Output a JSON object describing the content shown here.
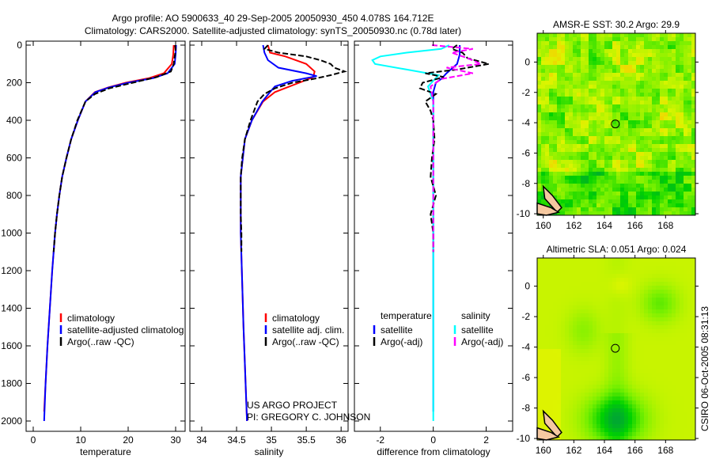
{
  "title_line1": "Argo profile: AO 5900633_40 29-Sep-2005 20050930_450 4.078S 164.712E",
  "title_line2": "Climatology: CARS2000. Satellite-adjusted climatology: synTS_20050930.nc (0.78d later)",
  "credit_project": "US ARGO PROJECT",
  "credit_pi": "PI: GREGORY C. JOHNSON",
  "timestamp": "CSIRO 06-Oct-2005 08:31:13",
  "colors": {
    "climatology": "#ff0000",
    "satellite": "#0000ff",
    "argo": "#000000",
    "sat_salinity": "#00ffff",
    "argo_salinity": "#ff00ff"
  },
  "chart_data": [
    {
      "type": "line",
      "xlabel": "temperature",
      "xlim": [
        -1.5,
        32
      ],
      "ylim": [
        2000,
        0
      ],
      "xticks": [
        0,
        10,
        20,
        30
      ],
      "yticks": [
        0,
        200,
        400,
        600,
        800,
        1000,
        1200,
        1400,
        1600,
        1800,
        2000
      ],
      "legend": [
        "climatology",
        "satellite-adjusted climatolog",
        "Argo(..raw -QC)"
      ],
      "series": [
        {
          "name": "climatology",
          "color": "#ff0000",
          "dash": false,
          "depth": [
            0,
            50,
            100,
            150,
            175,
            200,
            225,
            250,
            300,
            400,
            500,
            600,
            700,
            800,
            900,
            1000,
            1200,
            1400,
            1600,
            1800,
            1950
          ],
          "values": [
            29.6,
            29.5,
            29.2,
            27.5,
            24.5,
            19.5,
            15.8,
            13,
            11,
            9.4,
            8,
            7,
            6.1,
            5.5,
            5,
            4.6,
            4,
            3.5,
            3,
            2.6,
            2.3
          ]
        },
        {
          "name": "satellite-adjusted climatology",
          "color": "#0000ff",
          "dash": false,
          "depth": [
            0,
            50,
            100,
            150,
            175,
            200,
            225,
            250,
            300,
            400,
            500,
            600,
            700,
            800,
            900,
            1000,
            1200,
            1400,
            1600,
            1800,
            2000
          ],
          "values": [
            30.1,
            30,
            29.8,
            28.3,
            25.3,
            20,
            16,
            13.1,
            11,
            9.4,
            8,
            7,
            6.1,
            5.5,
            5,
            4.6,
            4,
            3.5,
            3,
            2.6,
            2.3
          ]
        },
        {
          "name": "Argo(..raw -QC)",
          "color": "#000000",
          "dash": true,
          "depth": [
            0,
            30,
            60,
            100,
            140,
            170,
            200,
            230,
            260,
            300,
            400,
            500,
            600,
            700,
            800,
            900,
            1000,
            1100
          ],
          "values": [
            29.9,
            30,
            29.8,
            29.6,
            29,
            26,
            21,
            16,
            13,
            11,
            9.3,
            8,
            7,
            6.1,
            5.5,
            5,
            4.6,
            4.3
          ]
        }
      ]
    },
    {
      "type": "line",
      "xlabel": "salinity",
      "xlim": [
        33.83,
        36.1
      ],
      "ylim": [
        2000,
        0
      ],
      "xticks": [
        34,
        34.5,
        35,
        35.5,
        36
      ],
      "legend": [
        "climatology",
        "satellite adj. clim.",
        "Argo(..raw -QC)"
      ],
      "series": [
        {
          "name": "climatology",
          "color": "#ff0000",
          "dash": false,
          "depth": [
            0,
            40,
            60,
            100,
            140,
            170,
            200,
            250,
            300,
            400,
            500,
            700,
            1000,
            1500,
            2000
          ],
          "values": [
            34.95,
            34.98,
            35.2,
            35.5,
            35.62,
            35.6,
            35.4,
            35.05,
            34.88,
            34.72,
            34.62,
            34.56,
            34.56,
            34.6,
            34.65
          ]
        },
        {
          "name": "satellite adj. clim.",
          "color": "#0000ff",
          "dash": false,
          "depth": [
            0,
            40,
            80,
            120,
            150,
            165,
            190,
            220,
            250,
            300,
            400,
            500,
            700,
            1000,
            1500,
            2000
          ],
          "values": [
            34.88,
            34.9,
            34.95,
            35.1,
            35.5,
            35.65,
            35.3,
            35.05,
            34.98,
            34.87,
            34.72,
            34.62,
            34.56,
            34.56,
            34.6,
            34.65
          ]
        },
        {
          "name": "Argo(..raw -QC)",
          "color": "#000000",
          "dash": true,
          "depth": [
            0,
            20,
            40,
            60,
            80,
            100,
            120,
            140,
            160,
            180,
            200,
            230,
            260,
            300,
            350,
            400,
            500,
            600,
            700,
            800,
            900,
            1000,
            1100
          ],
          "values": [
            34.95,
            34.9,
            35.1,
            35.5,
            35.7,
            35.85,
            35.9,
            36.05,
            35.85,
            35.6,
            35.3,
            35.05,
            34.9,
            34.8,
            34.75,
            34.7,
            34.62,
            34.58,
            34.56,
            34.56,
            34.56,
            34.57,
            34.57
          ]
        }
      ]
    },
    {
      "type": "line",
      "xlabel": "difference from climatology",
      "xlim": [
        -2.98,
        3.0
      ],
      "ylim": [
        2000,
        0
      ],
      "xticks": [
        -2,
        0,
        2
      ],
      "legend_headers": [
        "temperature",
        "salinity"
      ],
      "legend": [
        "satellite",
        "Argo(-adj)",
        "satellite",
        "Argo(-adj)"
      ],
      "series": [
        {
          "name": "temperature satellite",
          "color": "#0000ff",
          "dash": false,
          "depth": [
            0,
            50,
            100,
            150,
            180,
            200,
            250,
            300,
            400,
            600,
            1000,
            1500,
            1950
          ],
          "values": [
            1.0,
            1.0,
            0.9,
            0.5,
            0.3,
            0.1,
            0,
            0,
            0,
            0,
            0,
            0,
            0
          ]
        },
        {
          "name": "salinity satellite",
          "color": "#00ffff",
          "dash": false,
          "depth": [
            0,
            20,
            40,
            60,
            80,
            100,
            130,
            160,
            190,
            220,
            300,
            600,
            1000,
            1500,
            2000
          ],
          "values": [
            0.6,
            0.3,
            -1.0,
            -2.0,
            -2.3,
            -2.2,
            -1.0,
            0.2,
            0,
            -0.2,
            0,
            0,
            0,
            0,
            0
          ]
        },
        {
          "name": "temperature Argo(-adj)",
          "color": "#000000",
          "dash": true,
          "depth": [
            0,
            20,
            40,
            70,
            100,
            130,
            150,
            170,
            200,
            230,
            260,
            300,
            350,
            400,
            500,
            600,
            700,
            800,
            900,
            1000,
            1100
          ],
          "values": [
            0.9,
            0.7,
            1.1,
            1.3,
            2.1,
            0.9,
            -0.3,
            0.4,
            -0.4,
            -0.5,
            0.1,
            -0.3,
            -0.1,
            0,
            0.05,
            -0.05,
            -0.1,
            0.1,
            -0.1,
            0,
            0
          ]
        },
        {
          "name": "salinity Argo(-adj)",
          "color": "#ff00ff",
          "dash": true,
          "depth": [
            0,
            20,
            40,
            70,
            100,
            120,
            150,
            180,
            220,
            300,
            400,
            600,
            800,
            1000,
            1100
          ],
          "values": [
            -0.05,
            1.5,
            0.7,
            1.3,
            1.8,
            0.5,
            1.5,
            0.3,
            -0.1,
            0,
            0,
            0,
            0,
            0,
            0
          ]
        }
      ]
    },
    {
      "type": "heatmap",
      "title": "AMSR-E SST: 30.2 Argo: 29.9",
      "xlim": [
        159.6,
        169.95
      ],
      "ylim": [
        -10.1,
        1.9
      ],
      "xticks": [
        160,
        162,
        164,
        166,
        168
      ],
      "yticks": [
        0,
        -2,
        -4,
        -6,
        -8,
        -10
      ],
      "marker": {
        "lon": 164.712,
        "lat": -4.078
      }
    },
    {
      "type": "heatmap",
      "title": "Altimetric SLA: 0.051 Argo: 0.024",
      "xlim": [
        159.6,
        169.95
      ],
      "ylim": [
        -10.1,
        1.85
      ],
      "xticks": [
        160,
        162,
        164,
        166,
        168
      ],
      "yticks": [
        0,
        -2,
        -4,
        -6,
        -8,
        -10
      ],
      "marker": {
        "lon": 164.712,
        "lat": -4.078
      }
    }
  ]
}
